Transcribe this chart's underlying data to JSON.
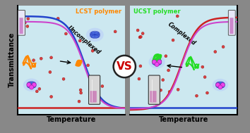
{
  "panel_bg": "#cce8f0",
  "lcst_color": "#ff8800",
  "ucst_color": "#22dd22",
  "blue_curve": "#2244cc",
  "red_curve": "#cc2222",
  "magenta_curve": "#cc44cc",
  "cage_fill": "#4466dd",
  "cage_edge": "#1122aa",
  "pink_fill": "#ee44ee",
  "pink_edge": "#aa22aa",
  "title_lcst": "LCST polymer",
  "title_ucst": "UCST polymer",
  "label_uncomplexed": "Uncomplexed",
  "label_complexed": "Complexed",
  "xlabel": "Temperature",
  "ylabel": "Transmittance",
  "vs_text": "VS",
  "vs_color": "#cc0000",
  "border_color": "#111111",
  "red_dot": "#dd2222"
}
